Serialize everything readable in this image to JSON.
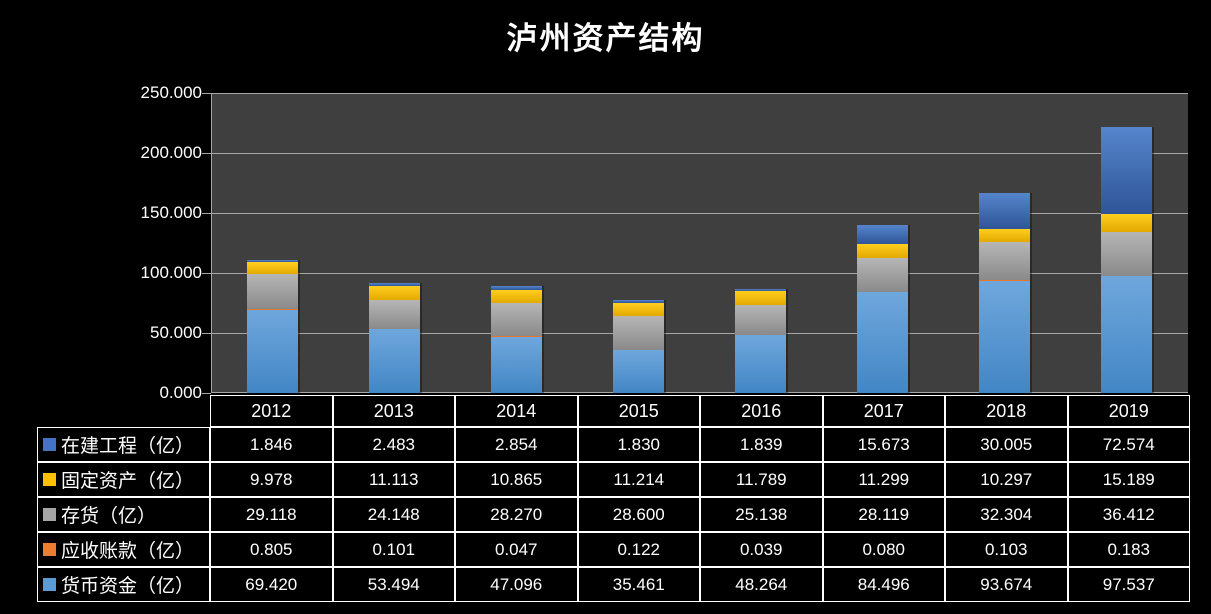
{
  "title": "泸州资产结构",
  "chart_data": {
    "type": "bar",
    "stacked": true,
    "title": "泸州资产结构",
    "categories": [
      "2012",
      "2013",
      "2014",
      "2015",
      "2016",
      "2017",
      "2018",
      "2019"
    ],
    "series": [
      {
        "name": "在建工程（亿）",
        "color": "#4472C4",
        "gradient_top": "#5585CC",
        "gradient_bottom": "#2F5597",
        "values": [
          1.846,
          2.483,
          2.854,
          1.83,
          1.839,
          15.673,
          30.005,
          72.574
        ]
      },
      {
        "name": "固定资产（亿）",
        "color": "#FFC000",
        "gradient_top": "#FFCE1F",
        "gradient_bottom": "#E3A900",
        "values": [
          9.978,
          11.113,
          10.865,
          11.214,
          11.789,
          11.299,
          10.297,
          15.189
        ]
      },
      {
        "name": "存货（亿）",
        "color": "#A5A5A5",
        "gradient_top": "#B6B6B6",
        "gradient_bottom": "#8A8A8A",
        "values": [
          29.118,
          24.148,
          28.27,
          28.6,
          25.138,
          28.119,
          32.304,
          36.412
        ]
      },
      {
        "name": "应收账款（亿）",
        "color": "#ED7D31",
        "gradient_top": "#F08B45",
        "gradient_bottom": "#D5660F",
        "values": [
          0.805,
          0.101,
          0.047,
          0.122,
          0.039,
          0.08,
          0.103,
          0.183
        ]
      },
      {
        "name": "货币资金（亿）",
        "color": "#5B9BD5",
        "gradient_top": "#6FA7DC",
        "gradient_bottom": "#4286C5",
        "values": [
          69.42,
          53.494,
          47.096,
          35.461,
          48.264,
          84.496,
          93.674,
          97.537
        ]
      }
    ],
    "ylim": [
      0,
      250
    ],
    "ytick_labels": [
      "250.000",
      "200.000",
      "150.000",
      "100.000",
      "50.000",
      "0.000"
    ],
    "grid": true,
    "legend_position": "table-rows-left",
    "value_decimals": 3,
    "colors": {
      "canvas_bg": "#000000",
      "plot_bg": "#3F3F3F",
      "gridline": "#A6A6A6",
      "axis_text": "#FFFFFF",
      "table_border": "#FFFFFF",
      "table_text": "#FFFFFF"
    }
  }
}
